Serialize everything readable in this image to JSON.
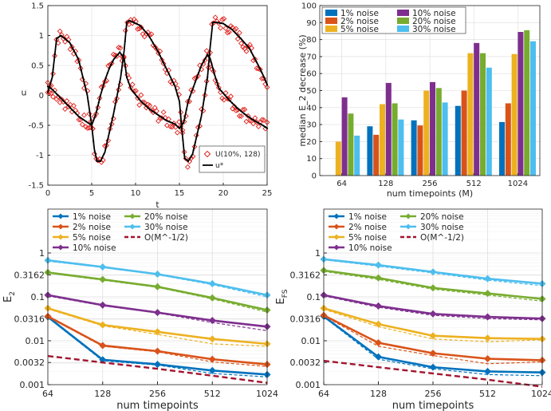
{
  "chart_data": [
    {
      "id": "p1",
      "type": "scatter",
      "title": "",
      "xlabel": "t",
      "ylabel": "u",
      "xlim": [
        0,
        25
      ],
      "ylim": [
        -1.5,
        1.5
      ],
      "xticks": [
        0,
        5,
        10,
        15,
        20,
        25
      ],
      "yticks": [
        -1.5,
        -1,
        -0.5,
        0,
        0.5,
        1,
        1.5
      ],
      "series": [
        {
          "name": "U(10%,128)",
          "style": "markers",
          "color": "#e0201b"
        },
        {
          "name": "u*",
          "style": "line",
          "color": "#000000"
        }
      ],
      "curves": {
        "u1": [
          [
            0,
            0.05
          ],
          [
            0.5,
            0.3
          ],
          [
            1,
            0.95
          ],
          [
            1.5,
            1.0
          ],
          [
            2.5,
            0.88
          ],
          [
            3.5,
            0.6
          ],
          [
            4.5,
            0.0
          ],
          [
            5.0,
            -0.5
          ],
          [
            5.3,
            -0.9
          ],
          [
            5.6,
            -1.1
          ],
          [
            6.0,
            -1.1
          ],
          [
            6.5,
            -0.95
          ],
          [
            7.5,
            -0.3
          ],
          [
            8.3,
            0.3
          ],
          [
            8.7,
            0.75
          ],
          [
            9.0,
            1.22
          ],
          [
            9.3,
            1.25
          ],
          [
            10.5,
            1.17
          ],
          [
            11.5,
            1.0
          ],
          [
            12.5,
            0.75
          ],
          [
            13.5,
            0.45
          ],
          [
            14.5,
            0.15
          ],
          [
            15.0,
            -0.1
          ],
          [
            15.3,
            -0.6
          ],
          [
            15.6,
            -1.05
          ],
          [
            16.0,
            -1.1
          ],
          [
            16.5,
            -0.98
          ],
          [
            17.5,
            -0.35
          ],
          [
            18.2,
            0.3
          ],
          [
            18.5,
            0.8
          ],
          [
            18.8,
            1.22
          ],
          [
            19.2,
            1.22
          ],
          [
            20,
            1.2
          ],
          [
            21,
            1.1
          ],
          [
            22,
            0.95
          ],
          [
            23,
            0.78
          ],
          [
            24,
            0.5
          ],
          [
            24.5,
            0.35
          ],
          [
            25,
            0.18
          ]
        ],
        "u2": [
          [
            0,
            0.15
          ],
          [
            0.5,
            0.1
          ],
          [
            1.5,
            -0.05
          ],
          [
            2.5,
            -0.2
          ],
          [
            3.5,
            -0.35
          ],
          [
            4.5,
            -0.45
          ],
          [
            5.0,
            -0.5
          ],
          [
            5.5,
            -0.3
          ],
          [
            6.0,
            0.0
          ],
          [
            6.5,
            0.25
          ],
          [
            7.0,
            0.45
          ],
          [
            7.5,
            0.6
          ],
          [
            8.2,
            0.72
          ],
          [
            8.7,
            0.62
          ],
          [
            9.0,
            0.3
          ],
          [
            9.5,
            0.1
          ],
          [
            10.5,
            -0.08
          ],
          [
            11.5,
            -0.22
          ],
          [
            12.5,
            -0.32
          ],
          [
            13.5,
            -0.42
          ],
          [
            14.5,
            -0.48
          ],
          [
            15.0,
            -0.55
          ],
          [
            15.5,
            -0.45
          ],
          [
            16.0,
            -0.1
          ],
          [
            17.0,
            0.3
          ],
          [
            17.5,
            0.5
          ],
          [
            18.2,
            0.68
          ],
          [
            18.5,
            0.62
          ],
          [
            19.0,
            0.35
          ],
          [
            19.5,
            0.12
          ],
          [
            20.5,
            -0.05
          ],
          [
            21.5,
            -0.2
          ],
          [
            22.5,
            -0.32
          ],
          [
            23.5,
            -0.42
          ],
          [
            24.5,
            -0.5
          ],
          [
            25,
            -0.55
          ]
        ]
      },
      "legend_loc": "bottom-right"
    },
    {
      "id": "p2",
      "type": "bar",
      "xlabel": "num timepoints (M)",
      "ylabel": "median E_2 decrease (%)",
      "ylim": [
        0,
        100
      ],
      "yticks": [
        0,
        10,
        20,
        30,
        40,
        50,
        60,
        70,
        80,
        90,
        100
      ],
      "categories": [
        "64",
        "128",
        "256",
        "512",
        "1024"
      ],
      "series": [
        {
          "name": "1% noise",
          "color": "#0072bd",
          "values": [
            0,
            29,
            32.5,
            41,
            31.5
          ]
        },
        {
          "name": "2% noise",
          "color": "#d95319",
          "values": [
            0,
            24,
            29.5,
            50,
            42.5
          ]
        },
        {
          "name": "5% noise",
          "color": "#edb120",
          "values": [
            20,
            42,
            50,
            72,
            71.5
          ]
        },
        {
          "name": "10% noise",
          "color": "#7e2f8e",
          "values": [
            46,
            54.5,
            55,
            78,
            84.5
          ]
        },
        {
          "name": "20% noise",
          "color": "#77ac30",
          "values": [
            36.5,
            42.5,
            51.5,
            72,
            85.5
          ]
        },
        {
          "name": "30% noise",
          "color": "#4dbeee",
          "values": [
            23.5,
            33,
            43,
            63.5,
            79
          ]
        }
      ],
      "legend_loc": "top"
    },
    {
      "id": "p3",
      "type": "line",
      "xlabel": "num timepoints",
      "ylabel": "E_2",
      "yscale": "log",
      "ylim": [
        0.001,
        10
      ],
      "x": [
        64,
        128,
        256,
        512,
        1024
      ],
      "xticklabels": [
        "64",
        "128",
        "256",
        "512",
        "1024"
      ],
      "yticks": [
        0.001,
        0.0032,
        0.01,
        0.0316,
        0.1,
        0.3162,
        1
      ],
      "yticklabels": [
        "0.001",
        "0.0032",
        "0.01",
        "0.0316",
        "0.1",
        "0.3162",
        "1"
      ],
      "series": [
        {
          "name": "1% noise",
          "color": "#0072bd",
          "values": [
            0.035,
            0.0037,
            0.0029,
            0.0021,
            0.0017
          ],
          "dashed": [
            0.034,
            0.0035,
            0.0028,
            0.0018,
            0.0015
          ]
        },
        {
          "name": "2% noise",
          "color": "#d95319",
          "values": [
            0.036,
            0.0078,
            0.0058,
            0.0038,
            0.0029
          ],
          "dashed": [
            0.035,
            0.0075,
            0.0056,
            0.0033,
            0.0026
          ]
        },
        {
          "name": "5% noise",
          "color": "#edb120",
          "values": [
            0.055,
            0.023,
            0.016,
            0.011,
            0.0085
          ],
          "dashed": [
            0.053,
            0.022,
            0.014,
            0.0085,
            0.0075
          ]
        },
        {
          "name": "10% noise",
          "color": "#7e2f8e",
          "values": [
            0.11,
            0.065,
            0.044,
            0.029,
            0.021
          ],
          "dashed": [
            0.105,
            0.063,
            0.043,
            0.026,
            0.017
          ]
        },
        {
          "name": "20% noise",
          "color": "#77ac30",
          "values": [
            0.36,
            0.25,
            0.17,
            0.095,
            0.05
          ],
          "dashed": [
            0.35,
            0.24,
            0.165,
            0.09,
            0.045
          ]
        },
        {
          "name": "30% noise",
          "color": "#4dbeee",
          "values": [
            0.68,
            0.48,
            0.33,
            0.2,
            0.11
          ],
          "dashed": [
            0.65,
            0.47,
            0.32,
            0.19,
            0.1
          ]
        },
        {
          "name": "O(M^-1/2)",
          "color": "#a2142f",
          "style": "dashed",
          "values": [
            0.0045,
            0.0032,
            0.0023,
            0.0016,
            0.0011
          ]
        }
      ],
      "legend_loc": "top-left"
    },
    {
      "id": "p4",
      "type": "line",
      "xlabel": "num timepoints",
      "ylabel": "E_FS",
      "yscale": "log",
      "ylim": [
        0.001,
        10
      ],
      "x": [
        64,
        128,
        256,
        512,
        1024
      ],
      "xticklabels": [
        "64",
        "128",
        "256",
        "512",
        "1024"
      ],
      "yticks": [
        0.001,
        0.0032,
        0.01,
        0.0316,
        0.1,
        0.3162,
        1
      ],
      "yticklabels": [
        "0.001",
        "0.0032",
        "0.01",
        "0.0316",
        "0.1",
        "0.3162",
        "1"
      ],
      "series": [
        {
          "name": "1% noise",
          "color": "#0072bd",
          "values": [
            0.036,
            0.0043,
            0.0025,
            0.002,
            0.0019
          ],
          "dashed": [
            0.035,
            0.0038,
            0.0023,
            0.0017,
            0.0016
          ]
        },
        {
          "name": "2% noise",
          "color": "#d95319",
          "values": [
            0.038,
            0.009,
            0.0052,
            0.0039,
            0.0036
          ],
          "dashed": [
            0.037,
            0.0075,
            0.0046,
            0.003,
            0.0033
          ]
        },
        {
          "name": "5% noise",
          "color": "#edb120",
          "values": [
            0.055,
            0.024,
            0.013,
            0.0115,
            0.011
          ],
          "dashed": [
            0.052,
            0.021,
            0.011,
            0.0095,
            0.0105
          ]
        },
        {
          "name": "10% noise",
          "color": "#7e2f8e",
          "values": [
            0.11,
            0.062,
            0.041,
            0.035,
            0.032
          ],
          "dashed": [
            0.105,
            0.058,
            0.038,
            0.032,
            0.03
          ]
        },
        {
          "name": "20% noise",
          "color": "#77ac30",
          "values": [
            0.4,
            0.27,
            0.16,
            0.12,
            0.09
          ],
          "dashed": [
            0.38,
            0.25,
            0.15,
            0.11,
            0.08
          ]
        },
        {
          "name": "30% noise",
          "color": "#4dbeee",
          "values": [
            0.72,
            0.53,
            0.37,
            0.26,
            0.2
          ],
          "dashed": [
            0.7,
            0.5,
            0.35,
            0.24,
            0.18
          ]
        },
        {
          "name": "O(M^-1/2)",
          "color": "#a2142f",
          "style": "dashed",
          "values": [
            0.0035,
            0.0025,
            0.0018,
            0.0013,
            0.0009
          ]
        }
      ],
      "legend_loc": "top-left"
    }
  ],
  "legend_texts": {
    "p1": {
      "a": "U(10%, 128)",
      "b": "u*"
    },
    "p2": [
      "1% noise",
      "10% noise",
      "2% noise",
      "20% noise",
      "5% noise",
      "30% noise"
    ],
    "p3": [
      "1% noise",
      "20% noise",
      "2% noise",
      "30% noise",
      "5% noise",
      "O(M^-1/2)",
      "10% noise"
    ]
  },
  "colors": {
    "axis": "#262626",
    "grid": "#dcdcdc",
    "markers": "#e0201b"
  }
}
